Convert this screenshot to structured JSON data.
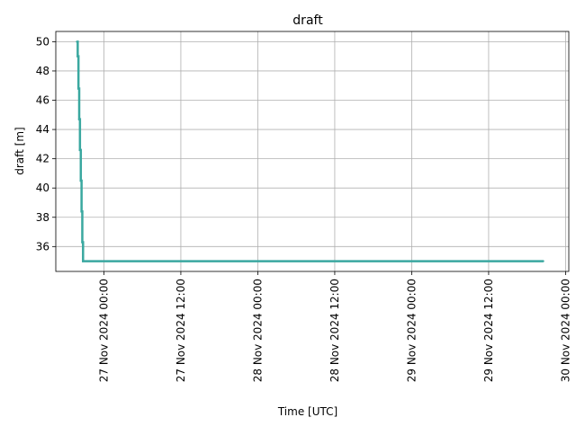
{
  "chart_data": {
    "type": "line",
    "title": "draft",
    "xlabel": "Time  [UTC]",
    "ylabel": "draft  [m]",
    "x_axis_kind": "datetime",
    "xlim": [
      "2024-11-26T16:30:00",
      "2024-11-30T00:30:00"
    ],
    "ylim": [
      34.3,
      50.7
    ],
    "x_ticks": [
      {
        "value": "2024-11-27T00:00:00",
        "label": "27 Nov 2024 00:00"
      },
      {
        "value": "2024-11-27T12:00:00",
        "label": "27 Nov 2024 12:00"
      },
      {
        "value": "2024-11-28T00:00:00",
        "label": "28 Nov 2024 00:00"
      },
      {
        "value": "2024-11-28T12:00:00",
        "label": "28 Nov 2024 12:00"
      },
      {
        "value": "2024-11-29T00:00:00",
        "label": "29 Nov 2024 00:00"
      },
      {
        "value": "2024-11-29T12:00:00",
        "label": "29 Nov 2024 12:00"
      },
      {
        "value": "2024-11-30T00:00:00",
        "label": "30 Nov 2024 00:00"
      }
    ],
    "y_ticks": [
      36,
      38,
      40,
      42,
      44,
      46,
      48,
      50
    ],
    "y_tick_labels": [
      "36",
      "38",
      "40",
      "42",
      "44",
      "46",
      "48",
      "50"
    ],
    "grid": true,
    "series": [
      {
        "color": "#3aa8a0",
        "step": true,
        "points": [
          {
            "x": "2024-11-26T19:48:00",
            "y": 50.0
          },
          {
            "x": "2024-11-26T19:55:00",
            "y": 49.0
          },
          {
            "x": "2024-11-26T20:02:00",
            "y": 46.8
          },
          {
            "x": "2024-11-26T20:09:00",
            "y": 44.7
          },
          {
            "x": "2024-11-26T20:16:00",
            "y": 42.6
          },
          {
            "x": "2024-11-26T20:24:00",
            "y": 40.5
          },
          {
            "x": "2024-11-26T20:31:00",
            "y": 38.4
          },
          {
            "x": "2024-11-26T20:38:00",
            "y": 36.3
          },
          {
            "x": "2024-11-26T20:45:00",
            "y": 35.0
          },
          {
            "x": "2024-11-29T20:30:00",
            "y": 35.0
          }
        ]
      }
    ]
  }
}
